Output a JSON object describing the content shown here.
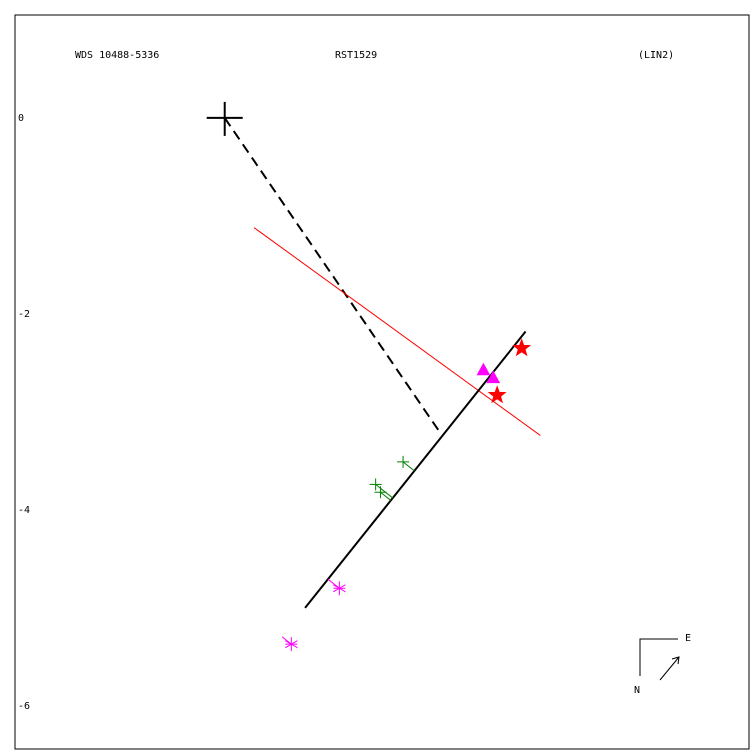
{
  "chart_data": {
    "type": "scatter",
    "title": "WDS 10488-5336",
    "subtitle": "RST1529",
    "annotation": "(LIN2)",
    "compass_labels": [
      "E",
      "N"
    ],
    "xlim": [
      -2.14,
      5.35
    ],
    "ylim": [
      -6.44,
      1.05
    ],
    "yticks": [
      0,
      -2,
      -4,
      -6
    ],
    "primary": {
      "x": 0,
      "y": 0
    },
    "lines": [
      {
        "color": "#000000",
        "style": "dashed",
        "x": [
          0,
          2.19
        ],
        "y": [
          0,
          -3.2
        ]
      },
      {
        "color": "#ff0000",
        "style": "thin",
        "x": [
          0.3,
          3.22
        ],
        "y": [
          -1.12,
          -3.24
        ]
      },
      {
        "color": "#000000",
        "style": "solid",
        "x": [
          0.82,
          3.07
        ],
        "y": [
          -5.0,
          -2.18
        ]
      }
    ],
    "series": [
      {
        "marker": "star",
        "color": "#ff0000",
        "residuals": false,
        "x": [
          3.03,
          2.78
        ],
        "y": [
          -2.35,
          -2.83
        ]
      },
      {
        "marker": "triangle",
        "color": "#ff00ff",
        "residuals": false,
        "x": [
          2.64,
          2.74
        ],
        "y": [
          -2.57,
          -2.65
        ]
      },
      {
        "marker": "plus",
        "color": "#008000",
        "residuals": true,
        "x": [
          1.82,
          1.54,
          1.59
        ],
        "y": [
          -3.51,
          -3.74,
          -3.82
        ]
      },
      {
        "marker": "asterisk",
        "color": "#ff00ff",
        "residuals": true,
        "x": [
          1.17,
          0.68
        ],
        "y": [
          -4.8,
          -5.37
        ]
      }
    ]
  }
}
